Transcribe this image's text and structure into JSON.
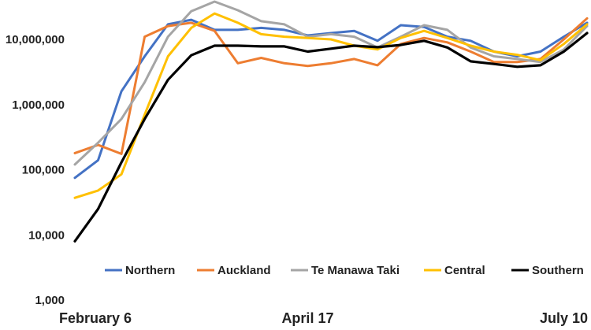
{
  "chart_data": {
    "type": "line",
    "y_scale": "log",
    "ylim": [
      1000,
      40000000
    ],
    "y_ticks": [
      {
        "value": 1000,
        "label": "1,000"
      },
      {
        "value": 10000,
        "label": "10,000"
      },
      {
        "value": 100000,
        "label": "100,000"
      },
      {
        "value": 1000000,
        "label": "1,000,000"
      },
      {
        "value": 10000000,
        "label": "10,000,000"
      }
    ],
    "x_tick_labels": [
      {
        "index": 0,
        "label": "February 6"
      },
      {
        "index": 10,
        "label": "April 17"
      },
      {
        "index": 22,
        "label": "July 10"
      }
    ],
    "grid": false,
    "legend_position": "bottom-inside",
    "series": [
      {
        "name": "Northern",
        "color": "#4472C4",
        "values": [
          75000,
          140000,
          1600000,
          5500000,
          17000000,
          20000000,
          14000000,
          14000000,
          15000000,
          14000000,
          11500000,
          12500000,
          13500000,
          9500000,
          16500000,
          15500000,
          11000000,
          9500000,
          6500000,
          5500000,
          6500000,
          11000000,
          18000000
        ]
      },
      {
        "name": "Auckland",
        "color": "#ED7D31",
        "values": [
          180000,
          240000,
          175000,
          11000000,
          16000000,
          18000000,
          13500000,
          4300000,
          5200000,
          4300000,
          3900000,
          4300000,
          5000000,
          4000000,
          8500000,
          10500000,
          9000000,
          6500000,
          4500000,
          4500000,
          5000000,
          10000000,
          21000000
        ]
      },
      {
        "name": "Te Manawa Taki",
        "color": "#A5A5A5",
        "values": [
          120000,
          260000,
          600000,
          2200000,
          11000000,
          27000000,
          38000000,
          28000000,
          19000000,
          17000000,
          11000000,
          12000000,
          11000000,
          7500000,
          11000000,
          16500000,
          14000000,
          7500000,
          5500000,
          5000000,
          4500000,
          7000000,
          16000000
        ]
      },
      {
        "name": "Central",
        "color": "#FFC000",
        "values": [
          37000,
          48000,
          85000,
          700000,
          5500000,
          15000000,
          25000000,
          18000000,
          12000000,
          11000000,
          10500000,
          10000000,
          8000000,
          7000000,
          10500000,
          13500000,
          10500000,
          8000000,
          6500000,
          5800000,
          4800000,
          8500000,
          17000000
        ]
      },
      {
        "name": "Southern",
        "color": "#000000",
        "values": [
          8000,
          25000,
          130000,
          600000,
          2400000,
          5700000,
          8000000,
          8000000,
          7800000,
          7800000,
          6500000,
          7200000,
          8000000,
          7600000,
          8200000,
          9500000,
          7500000,
          4600000,
          4200000,
          3800000,
          4000000,
          6500000,
          12500000
        ]
      }
    ]
  }
}
